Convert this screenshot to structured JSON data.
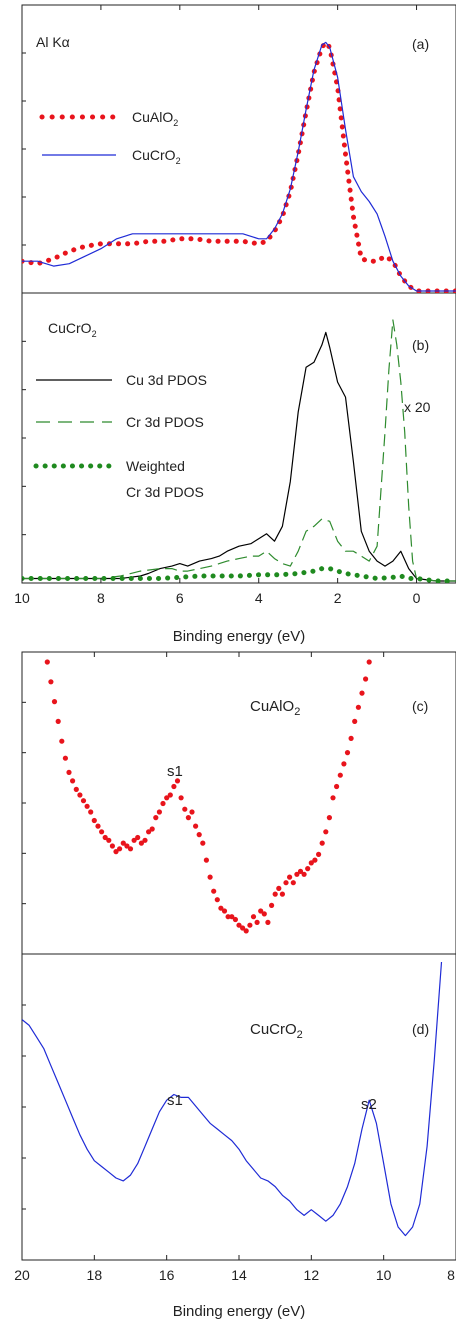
{
  "figure": {
    "top_xlabel": "Binding energy (eV)",
    "bottom_xlabel": "Binding energy (eV)"
  },
  "chart_data": [
    {
      "panel": "a",
      "type": "line",
      "panel_label": "(a)",
      "annotation": "Al Kα",
      "xlim": [
        10,
        -1
      ],
      "ylim": [
        0,
        1.05
      ],
      "y_ticks_labeled": false,
      "series": [
        {
          "name": "CuAlO2",
          "name_main": "CuAlO",
          "name_sub": "2",
          "style": "dotted",
          "color": "#e8141c",
          "x": [
            10.0,
            9.6,
            9.2,
            8.8,
            8.4,
            8.0,
            7.6,
            7.2,
            6.8,
            6.4,
            6.0,
            5.6,
            5.2,
            4.8,
            4.4,
            4.0,
            3.8,
            3.6,
            3.4,
            3.2,
            3.0,
            2.8,
            2.6,
            2.4,
            2.3,
            2.2,
            2.0,
            1.8,
            1.6,
            1.4,
            1.2,
            1.0,
            0.8,
            0.6,
            0.4,
            0.2,
            0.0,
            -0.2,
            -0.5,
            -1.0
          ],
          "y": [
            0.12,
            0.11,
            0.13,
            0.16,
            0.18,
            0.19,
            0.19,
            0.19,
            0.2,
            0.2,
            0.21,
            0.21,
            0.2,
            0.2,
            0.2,
            0.19,
            0.2,
            0.24,
            0.3,
            0.4,
            0.55,
            0.72,
            0.88,
            0.98,
            1.0,
            0.98,
            0.82,
            0.55,
            0.3,
            0.13,
            0.12,
            0.12,
            0.14,
            0.12,
            0.06,
            0.02,
            0.0,
            0.0,
            0.0,
            0.0
          ]
        },
        {
          "name": "CuCrO2",
          "name_main": "CuCrO",
          "name_sub": "2",
          "style": "solid",
          "color": "#1f2bd6",
          "x": [
            10.0,
            9.6,
            9.2,
            8.8,
            8.4,
            8.0,
            7.6,
            7.2,
            6.8,
            6.4,
            6.0,
            5.6,
            5.2,
            4.8,
            4.4,
            4.0,
            3.8,
            3.6,
            3.4,
            3.2,
            3.0,
            2.8,
            2.6,
            2.4,
            2.3,
            2.2,
            2.0,
            1.8,
            1.6,
            1.4,
            1.2,
            1.0,
            0.8,
            0.6,
            0.4,
            0.2,
            0.0,
            -0.2,
            -0.5,
            -1.0
          ],
          "y": [
            0.12,
            0.12,
            0.1,
            0.11,
            0.14,
            0.17,
            0.21,
            0.23,
            0.23,
            0.23,
            0.23,
            0.23,
            0.23,
            0.23,
            0.23,
            0.21,
            0.21,
            0.25,
            0.31,
            0.41,
            0.56,
            0.73,
            0.89,
            0.99,
            1.0,
            0.98,
            0.86,
            0.65,
            0.46,
            0.4,
            0.36,
            0.31,
            0.22,
            0.12,
            0.06,
            0.02,
            0.0,
            0.0,
            0.0,
            0.0
          ]
        }
      ]
    },
    {
      "panel": "b",
      "type": "line",
      "panel_label": "(b)",
      "annotation": "CuCrO2",
      "annotation_main": "CuCrO",
      "annotation_sub": "2",
      "note": "x 20",
      "xlim": [
        10,
        -1
      ],
      "ylim": [
        0,
        1.05
      ],
      "xticks": [
        10,
        8,
        6,
        4,
        2,
        0
      ],
      "xtick_labels": [
        "10",
        "8",
        "6",
        "4",
        "2",
        "0"
      ],
      "series": [
        {
          "name": "Cu 3d PDOS",
          "style": "solid",
          "color": "#000000",
          "x": [
            10.0,
            8.0,
            7.5,
            7.0,
            6.8,
            6.5,
            6.2,
            6.0,
            5.8,
            5.5,
            5.2,
            5.0,
            4.8,
            4.5,
            4.2,
            4.0,
            3.8,
            3.6,
            3.4,
            3.2,
            3.0,
            2.8,
            2.6,
            2.4,
            2.3,
            2.2,
            2.0,
            1.8,
            1.6,
            1.4,
            1.2,
            1.0,
            0.8,
            0.6,
            0.4,
            0.2,
            0.0,
            -0.5,
            -1.0
          ],
          "y": [
            0.01,
            0.01,
            0.01,
            0.02,
            0.03,
            0.05,
            0.06,
            0.07,
            0.06,
            0.08,
            0.09,
            0.1,
            0.12,
            0.14,
            0.15,
            0.17,
            0.19,
            0.16,
            0.22,
            0.4,
            0.68,
            0.86,
            0.88,
            0.95,
            1.0,
            0.94,
            0.8,
            0.74,
            0.48,
            0.2,
            0.12,
            0.08,
            0.06,
            0.08,
            0.12,
            0.05,
            0.01,
            0.0,
            0.0
          ]
        },
        {
          "name": "Cr 3d PDOS",
          "style": "dashed",
          "color": "#2e8b2e",
          "x": [
            10.0,
            8.0,
            7.5,
            7.0,
            6.5,
            6.2,
            6.0,
            5.8,
            5.5,
            5.2,
            5.0,
            4.8,
            4.5,
            4.2,
            4.0,
            3.8,
            3.6,
            3.4,
            3.2,
            3.0,
            2.8,
            2.6,
            2.4,
            2.2,
            2.0,
            1.8,
            1.6,
            1.4,
            1.2,
            1.0,
            0.8,
            0.7,
            0.6,
            0.5,
            0.4,
            0.3,
            0.2,
            0.1,
            0.0,
            -0.5,
            -1.0
          ],
          "y": [
            0.01,
            0.01,
            0.02,
            0.04,
            0.05,
            0.05,
            0.04,
            0.04,
            0.05,
            0.06,
            0.07,
            0.08,
            0.09,
            0.1,
            0.1,
            0.12,
            0.09,
            0.07,
            0.06,
            0.12,
            0.2,
            0.22,
            0.25,
            0.24,
            0.16,
            0.12,
            0.12,
            0.1,
            0.08,
            0.14,
            0.6,
            0.85,
            1.05,
            0.95,
            0.8,
            0.6,
            0.3,
            0.08,
            0.01,
            0.0,
            0.0
          ]
        },
        {
          "name": "Weighted Cr 3d PDOS",
          "name_line1": "Weighted",
          "name_line2": "Cr 3d PDOS",
          "style": "dotted",
          "color": "#1f8a1f",
          "x": [
            10.0,
            9.0,
            8.0,
            7.0,
            6.5,
            6.0,
            5.5,
            5.0,
            4.5,
            4.0,
            3.5,
            3.0,
            2.6,
            2.4,
            2.2,
            2.0,
            1.8,
            1.4,
            1.0,
            0.6,
            0.4,
            0.2,
            0.0,
            -0.5,
            -1.0
          ],
          "y": [
            0.01,
            0.01,
            0.01,
            0.01,
            0.01,
            0.015,
            0.02,
            0.02,
            0.02,
            0.025,
            0.025,
            0.03,
            0.04,
            0.05,
            0.05,
            0.04,
            0.03,
            0.02,
            0.01,
            0.015,
            0.02,
            0.01,
            0.01,
            0.0,
            0.0
          ]
        }
      ]
    },
    {
      "panel": "c",
      "type": "scatter",
      "panel_label": "(c)",
      "annotation": "CuAlO2",
      "annotation_main": "CuAlO",
      "annotation_sub": "2",
      "peak_labels": [
        {
          "text": "s1",
          "x": 15.8
        }
      ],
      "xlim": [
        20,
        8
      ],
      "ylim": [
        0,
        1.0
      ],
      "series": [
        {
          "name": "CuAlO2",
          "style": "dotted",
          "color": "#e8141c",
          "x": [
            19.3,
            19.2,
            19.1,
            19.0,
            18.9,
            18.8,
            18.7,
            18.6,
            18.5,
            18.4,
            18.3,
            18.2,
            18.1,
            18.0,
            17.9,
            17.8,
            17.7,
            17.6,
            17.5,
            17.4,
            17.3,
            17.2,
            17.1,
            17.0,
            16.9,
            16.8,
            16.7,
            16.6,
            16.5,
            16.4,
            16.3,
            16.2,
            16.1,
            16.0,
            15.9,
            15.8,
            15.7,
            15.6,
            15.5,
            15.4,
            15.3,
            15.2,
            15.1,
            15.0,
            14.9,
            14.8,
            14.7,
            14.6,
            14.5,
            14.4,
            14.3,
            14.2,
            14.1,
            14.0,
            13.9,
            13.8,
            13.7,
            13.6,
            13.5,
            13.4,
            13.3,
            13.2,
            13.1,
            13.0,
            12.9,
            12.8,
            12.7,
            12.6,
            12.5,
            12.4,
            12.3,
            12.2,
            12.1,
            12.0,
            11.9,
            11.8,
            11.7,
            11.6,
            11.5,
            11.4,
            11.3,
            11.2,
            11.1,
            11.0,
            10.9,
            10.8,
            10.7,
            10.6,
            10.5,
            10.4
          ],
          "y": [
            1.0,
            0.93,
            0.86,
            0.79,
            0.72,
            0.66,
            0.61,
            0.58,
            0.55,
            0.53,
            0.51,
            0.49,
            0.47,
            0.44,
            0.42,
            0.4,
            0.38,
            0.37,
            0.35,
            0.33,
            0.34,
            0.36,
            0.35,
            0.34,
            0.37,
            0.38,
            0.36,
            0.37,
            0.4,
            0.41,
            0.45,
            0.47,
            0.5,
            0.52,
            0.53,
            0.56,
            0.58,
            0.52,
            0.48,
            0.45,
            0.47,
            0.42,
            0.39,
            0.36,
            0.3,
            0.24,
            0.19,
            0.16,
            0.13,
            0.12,
            0.1,
            0.1,
            0.09,
            0.07,
            0.06,
            0.05,
            0.07,
            0.1,
            0.08,
            0.12,
            0.11,
            0.08,
            0.14,
            0.18,
            0.2,
            0.18,
            0.22,
            0.24,
            0.22,
            0.25,
            0.26,
            0.25,
            0.27,
            0.29,
            0.3,
            0.32,
            0.36,
            0.4,
            0.45,
            0.52,
            0.56,
            0.6,
            0.64,
            0.68,
            0.73,
            0.79,
            0.84,
            0.89,
            0.94,
            1.0
          ]
        }
      ]
    },
    {
      "panel": "d",
      "type": "line",
      "panel_label": "(d)",
      "annotation": "CuCrO2",
      "annotation_main": "CuCrO",
      "annotation_sub": "2",
      "peak_labels": [
        {
          "text": "s1",
          "x": 15.8
        },
        {
          "text": "s2",
          "x": 10.4
        }
      ],
      "xlim": [
        20,
        8
      ],
      "ylim": [
        0,
        1.0
      ],
      "xticks": [
        20,
        18,
        16,
        14,
        12,
        10,
        8
      ],
      "xtick_labels": [
        "20",
        "18",
        "16",
        "14",
        "12",
        "10",
        "8"
      ],
      "series": [
        {
          "name": "CuCrO2",
          "style": "solid",
          "color": "#1f2bd6",
          "x": [
            20.0,
            19.8,
            19.6,
            19.4,
            19.2,
            19.0,
            18.8,
            18.6,
            18.4,
            18.2,
            18.0,
            17.8,
            17.6,
            17.4,
            17.2,
            17.0,
            16.8,
            16.6,
            16.4,
            16.2,
            16.0,
            15.8,
            15.6,
            15.4,
            15.2,
            15.0,
            14.8,
            14.6,
            14.4,
            14.2,
            14.0,
            13.8,
            13.6,
            13.4,
            13.2,
            13.0,
            12.8,
            12.6,
            12.4,
            12.2,
            12.0,
            11.8,
            11.6,
            11.4,
            11.2,
            11.0,
            10.8,
            10.6,
            10.4,
            10.2,
            10.0,
            9.8,
            9.6,
            9.4,
            9.2,
            9.0,
            8.8,
            8.6,
            8.4
          ],
          "y": [
            0.8,
            0.78,
            0.74,
            0.7,
            0.64,
            0.58,
            0.52,
            0.46,
            0.4,
            0.35,
            0.31,
            0.29,
            0.27,
            0.25,
            0.24,
            0.26,
            0.3,
            0.36,
            0.42,
            0.48,
            0.52,
            0.54,
            0.53,
            0.53,
            0.5,
            0.47,
            0.44,
            0.42,
            0.4,
            0.38,
            0.35,
            0.31,
            0.28,
            0.25,
            0.24,
            0.22,
            0.19,
            0.17,
            0.14,
            0.12,
            0.14,
            0.12,
            0.1,
            0.12,
            0.16,
            0.22,
            0.3,
            0.42,
            0.52,
            0.44,
            0.3,
            0.16,
            0.08,
            0.05,
            0.08,
            0.16,
            0.36,
            0.66,
            1.0
          ]
        }
      ]
    }
  ]
}
